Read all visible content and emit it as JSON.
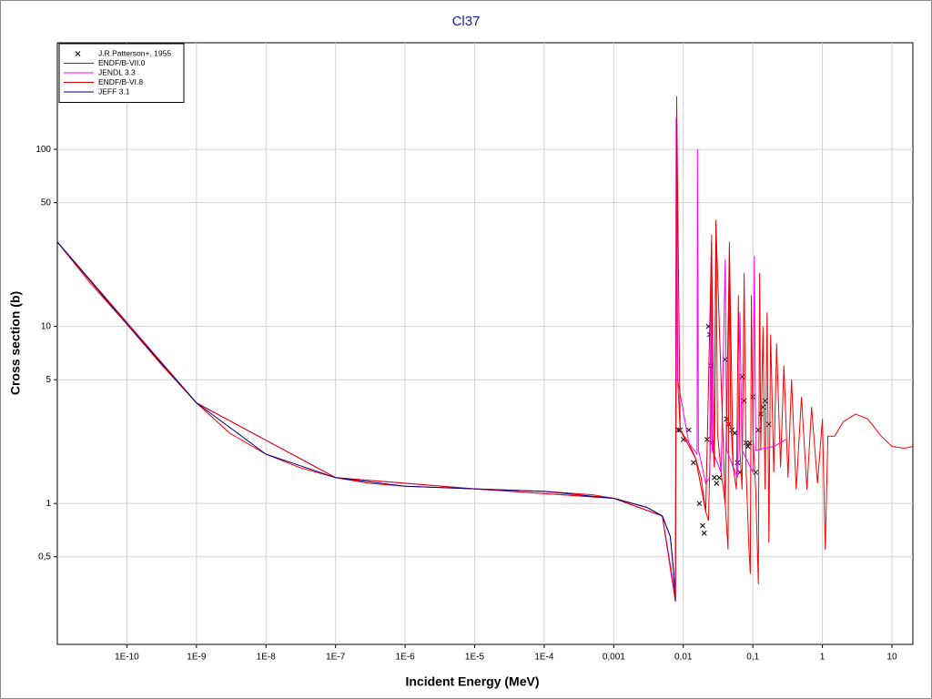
{
  "chart_data": {
    "type": "line",
    "title": "Cl37",
    "x_label": "Incident Energy (MeV)",
    "y_label": "Cross section (b)",
    "log_x": true,
    "log_y": true,
    "grid": true,
    "legend": "upper left",
    "xlim": [
      1e-11,
      20
    ],
    "ylim": [
      0.16,
      400
    ],
    "xticks": [
      {
        "value": 1e-10,
        "label": "1E-10"
      },
      {
        "value": 1e-09,
        "label": "1E-9"
      },
      {
        "value": 1e-08,
        "label": "1E-8"
      },
      {
        "value": 1e-07,
        "label": "1E-7"
      },
      {
        "value": 1e-06,
        "label": "1E-6"
      },
      {
        "value": 1e-05,
        "label": "1E-5"
      },
      {
        "value": 0.0001,
        "label": "1E-4"
      },
      {
        "value": 0.001,
        "label": "0,001"
      },
      {
        "value": 0.01,
        "label": "0,01"
      },
      {
        "value": 0.1,
        "label": "0,1"
      },
      1,
      10
    ],
    "yticks": [
      {
        "value": 0.5,
        "label": "0,5"
      },
      1,
      5,
      10,
      50,
      100
    ],
    "series": [
      {
        "name": "J.R.Patterson+, 1955",
        "color": "#000000",
        "type": "scatter",
        "x": [
          0.0085,
          0.009,
          0.01,
          0.012,
          0.014,
          0.017,
          0.019,
          0.02,
          0.022,
          0.023,
          0.024,
          0.025,
          0.026,
          0.028,
          0.03,
          0.033,
          0.04,
          0.042,
          0.045,
          0.05,
          0.055,
          0.06,
          0.065,
          0.07,
          0.075,
          0.08,
          0.085,
          0.09,
          0.1,
          0.11,
          0.12,
          0.13,
          0.14,
          0.15,
          0.17
        ],
        "values": [
          2.6,
          2.6,
          2.3,
          2.6,
          1.7,
          1.0,
          0.75,
          0.68,
          2.3,
          10,
          9,
          6,
          2.2,
          1.4,
          1.3,
          1.4,
          6.5,
          3,
          2.8,
          2.6,
          2.5,
          1.7,
          1.5,
          5.2,
          3.8,
          2.2,
          2.1,
          2.2,
          4,
          1.5,
          2.6,
          3.2,
          3.5,
          3.8,
          2.8
        ]
      },
      {
        "name": "ENDF/B-VII.0",
        "color": "#ff0000",
        "type": "line",
        "x": [
          1e-11,
          3e-11,
          1e-10,
          3e-10,
          1e-09,
          3e-09,
          1e-08,
          3e-08,
          1e-07,
          3e-07,
          1e-06,
          1e-05,
          0.0001,
          0.0005,
          0.001,
          0.003,
          0.005,
          0.0065,
          0.0073,
          0.0077,
          0.0079,
          0.00805,
          0.0083,
          0.009,
          0.012,
          0.015,
          0.018,
          0.021,
          0.023,
          0.025,
          0.0255,
          0.026,
          0.028,
          0.0295,
          0.031,
          0.035,
          0.04,
          0.044,
          0.046,
          0.048,
          0.052,
          0.058,
          0.062,
          0.065,
          0.07,
          0.075,
          0.08,
          0.088,
          0.092,
          0.095,
          0.1,
          0.11,
          0.12,
          0.125,
          0.13,
          0.14,
          0.15,
          0.16,
          0.17,
          0.18,
          0.2,
          0.22,
          0.25,
          0.28,
          0.32,
          0.36,
          0.42,
          0.5,
          0.6,
          0.7,
          0.85,
          1.0,
          1.1,
          1.2,
          1.5,
          2,
          3,
          4.5,
          7,
          10,
          15,
          20
        ],
        "values": [
          30,
          17.5,
          10.3,
          6.2,
          3.7,
          2.5,
          1.9,
          1.6,
          1.4,
          1.3,
          1.25,
          1.21,
          1.17,
          1.12,
          1.07,
          0.95,
          0.85,
          0.65,
          0.4,
          0.28,
          5,
          200,
          5,
          2.6,
          2.2,
          1.8,
          1.4,
          0.9,
          0.8,
          3,
          33,
          2.5,
          1.6,
          40,
          2.5,
          1.5,
          1.0,
          0.55,
          30,
          3,
          1.6,
          1.2,
          15,
          2,
          1.2,
          20,
          1.5,
          0.55,
          0.4,
          15,
          2.5,
          1.2,
          0.35,
          20,
          2,
          10,
          1.2,
          12,
          0.6,
          9,
          1.5,
          8,
          1.6,
          6,
          1.4,
          5,
          1.2,
          4,
          1.2,
          3.5,
          1.3,
          3,
          0.55,
          2.4,
          2.4,
          2.9,
          3.2,
          3,
          2.4,
          2.1,
          2.05,
          2.1
        ]
      },
      {
        "name": "JENDL 3.3",
        "color": "#ff00ff",
        "type": "line",
        "x": [
          1e-11,
          1e-09,
          1e-07,
          1e-05,
          0.001,
          0.005,
          0.0077,
          0.0079,
          0.0083,
          0.012,
          0.0158,
          0.016,
          0.0165,
          0.021,
          0.024,
          0.025,
          0.026,
          0.035,
          0.04,
          0.042,
          0.06,
          0.065,
          0.07,
          0.1,
          0.105,
          0.11,
          0.2,
          0.3
        ],
        "values": [
          30,
          3.7,
          1.4,
          1.21,
          1.07,
          0.85,
          0.3,
          150,
          5,
          2.2,
          1.9,
          100,
          2,
          1.3,
          1.4,
          25,
          2,
          1.5,
          24,
          2,
          1.4,
          12,
          2,
          1.5,
          25,
          2,
          2.1,
          2.3
        ]
      },
      {
        "name": "ENDF/B-VI.8",
        "color": "#e00000",
        "type": "line",
        "x": [
          1e-11,
          1e-09,
          1e-07,
          1e-05,
          0.001,
          0.005,
          0.0077,
          0.00805,
          0.009,
          0.015,
          0.021,
          0.0255,
          0.028,
          0.0295,
          0.04,
          0.046,
          0.052
        ],
        "values": [
          30,
          3.7,
          1.4,
          1.21,
          1.07,
          0.85,
          0.28,
          180,
          2.6,
          1.8,
          0.9,
          30,
          1.6,
          38,
          1.0,
          28,
          1.6
        ]
      },
      {
        "name": "JEFF 3.1",
        "color": "#000080",
        "type": "line",
        "x": [
          1e-11,
          1e-10,
          1e-09,
          1e-08,
          1e-07,
          1e-06,
          1e-05,
          0.0001,
          0.001,
          0.003,
          0.005,
          0.0065,
          0.0073,
          0.0077
        ],
        "values": [
          30,
          10.3,
          3.7,
          1.9,
          1.4,
          1.25,
          1.21,
          1.17,
          1.07,
          0.95,
          0.85,
          0.65,
          0.4,
          0.28
        ]
      }
    ]
  }
}
